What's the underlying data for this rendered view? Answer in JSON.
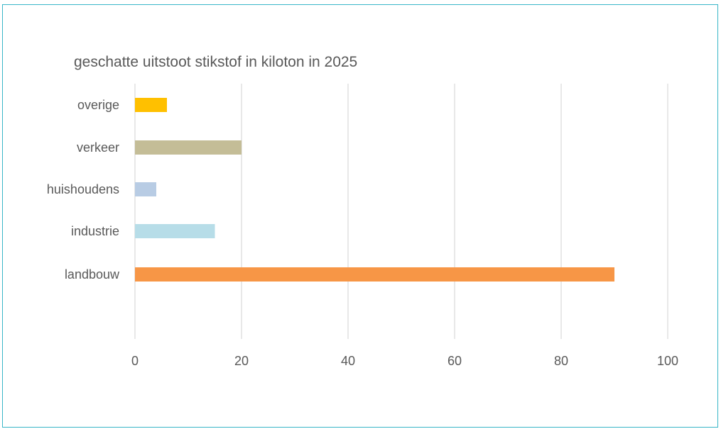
{
  "chart_data": {
    "type": "bar",
    "orientation": "horizontal",
    "title": "geschatte uitstoot stikstof in kiloton in 2025",
    "xlabel": "",
    "ylabel": "",
    "categories": [
      "overige",
      "verkeer",
      "huishoudens",
      "industrie",
      "landbouw"
    ],
    "values": [
      6,
      20,
      4,
      15,
      90
    ],
    "colors": [
      "#FFC000",
      "#C4BD97",
      "#B8CCE4",
      "#B7DDE8",
      "#F79646"
    ],
    "xlim": [
      0,
      100
    ],
    "xticks": [
      "0",
      "20",
      "40",
      "60",
      "80",
      "100"
    ],
    "grid": "vertical",
    "legend": "none"
  },
  "style": {
    "frame_border": "#39b6c8",
    "grid_color": "#d9d9d9",
    "text_color": "#595959"
  }
}
